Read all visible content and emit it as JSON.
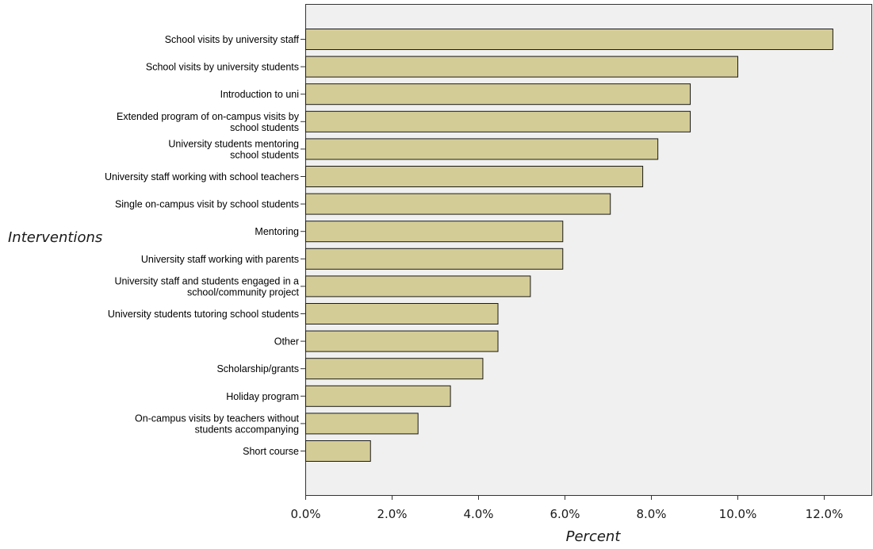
{
  "chart_data": {
    "type": "bar",
    "orientation": "horizontal",
    "xlabel": "Percent",
    "ylabel": "Interventions",
    "xlim": [
      0,
      13
    ],
    "x_ticks": [
      0,
      2,
      4,
      6,
      8,
      10,
      12
    ],
    "x_tick_labels": [
      "0.0%",
      "2.0%",
      "4.0%",
      "6.0%",
      "8.0%",
      "10.0%",
      "12.0%"
    ],
    "grid": false,
    "colors": {
      "bar_fill": "#d4cc96",
      "bar_stroke": "#1a1a1a",
      "plot_background": "#f0f0f0"
    },
    "categories": [
      [
        "School visits by university staff"
      ],
      [
        "School visits by university students"
      ],
      [
        "Introduction to uni"
      ],
      [
        "Extended program of on-campus visits by",
        "school students"
      ],
      [
        "University students mentoring",
        "school students"
      ],
      [
        "University staff working with school teachers"
      ],
      [
        "Single on-campus visit by school students"
      ],
      [
        "Mentoring"
      ],
      [
        "University staff working with parents"
      ],
      [
        "University staff and students engaged in a",
        "school/community project"
      ],
      [
        "University students tutoring school students"
      ],
      [
        "Other"
      ],
      [
        "Scholarship/grants"
      ],
      [
        "Holiday program"
      ],
      [
        "On-campus visits by teachers without",
        "students accompanying"
      ],
      [
        "Short course"
      ]
    ],
    "values": [
      12.2,
      10.0,
      8.9,
      8.9,
      8.15,
      7.8,
      7.05,
      5.95,
      5.95,
      5.2,
      4.45,
      4.45,
      4.1,
      3.35,
      2.6,
      1.5
    ]
  }
}
